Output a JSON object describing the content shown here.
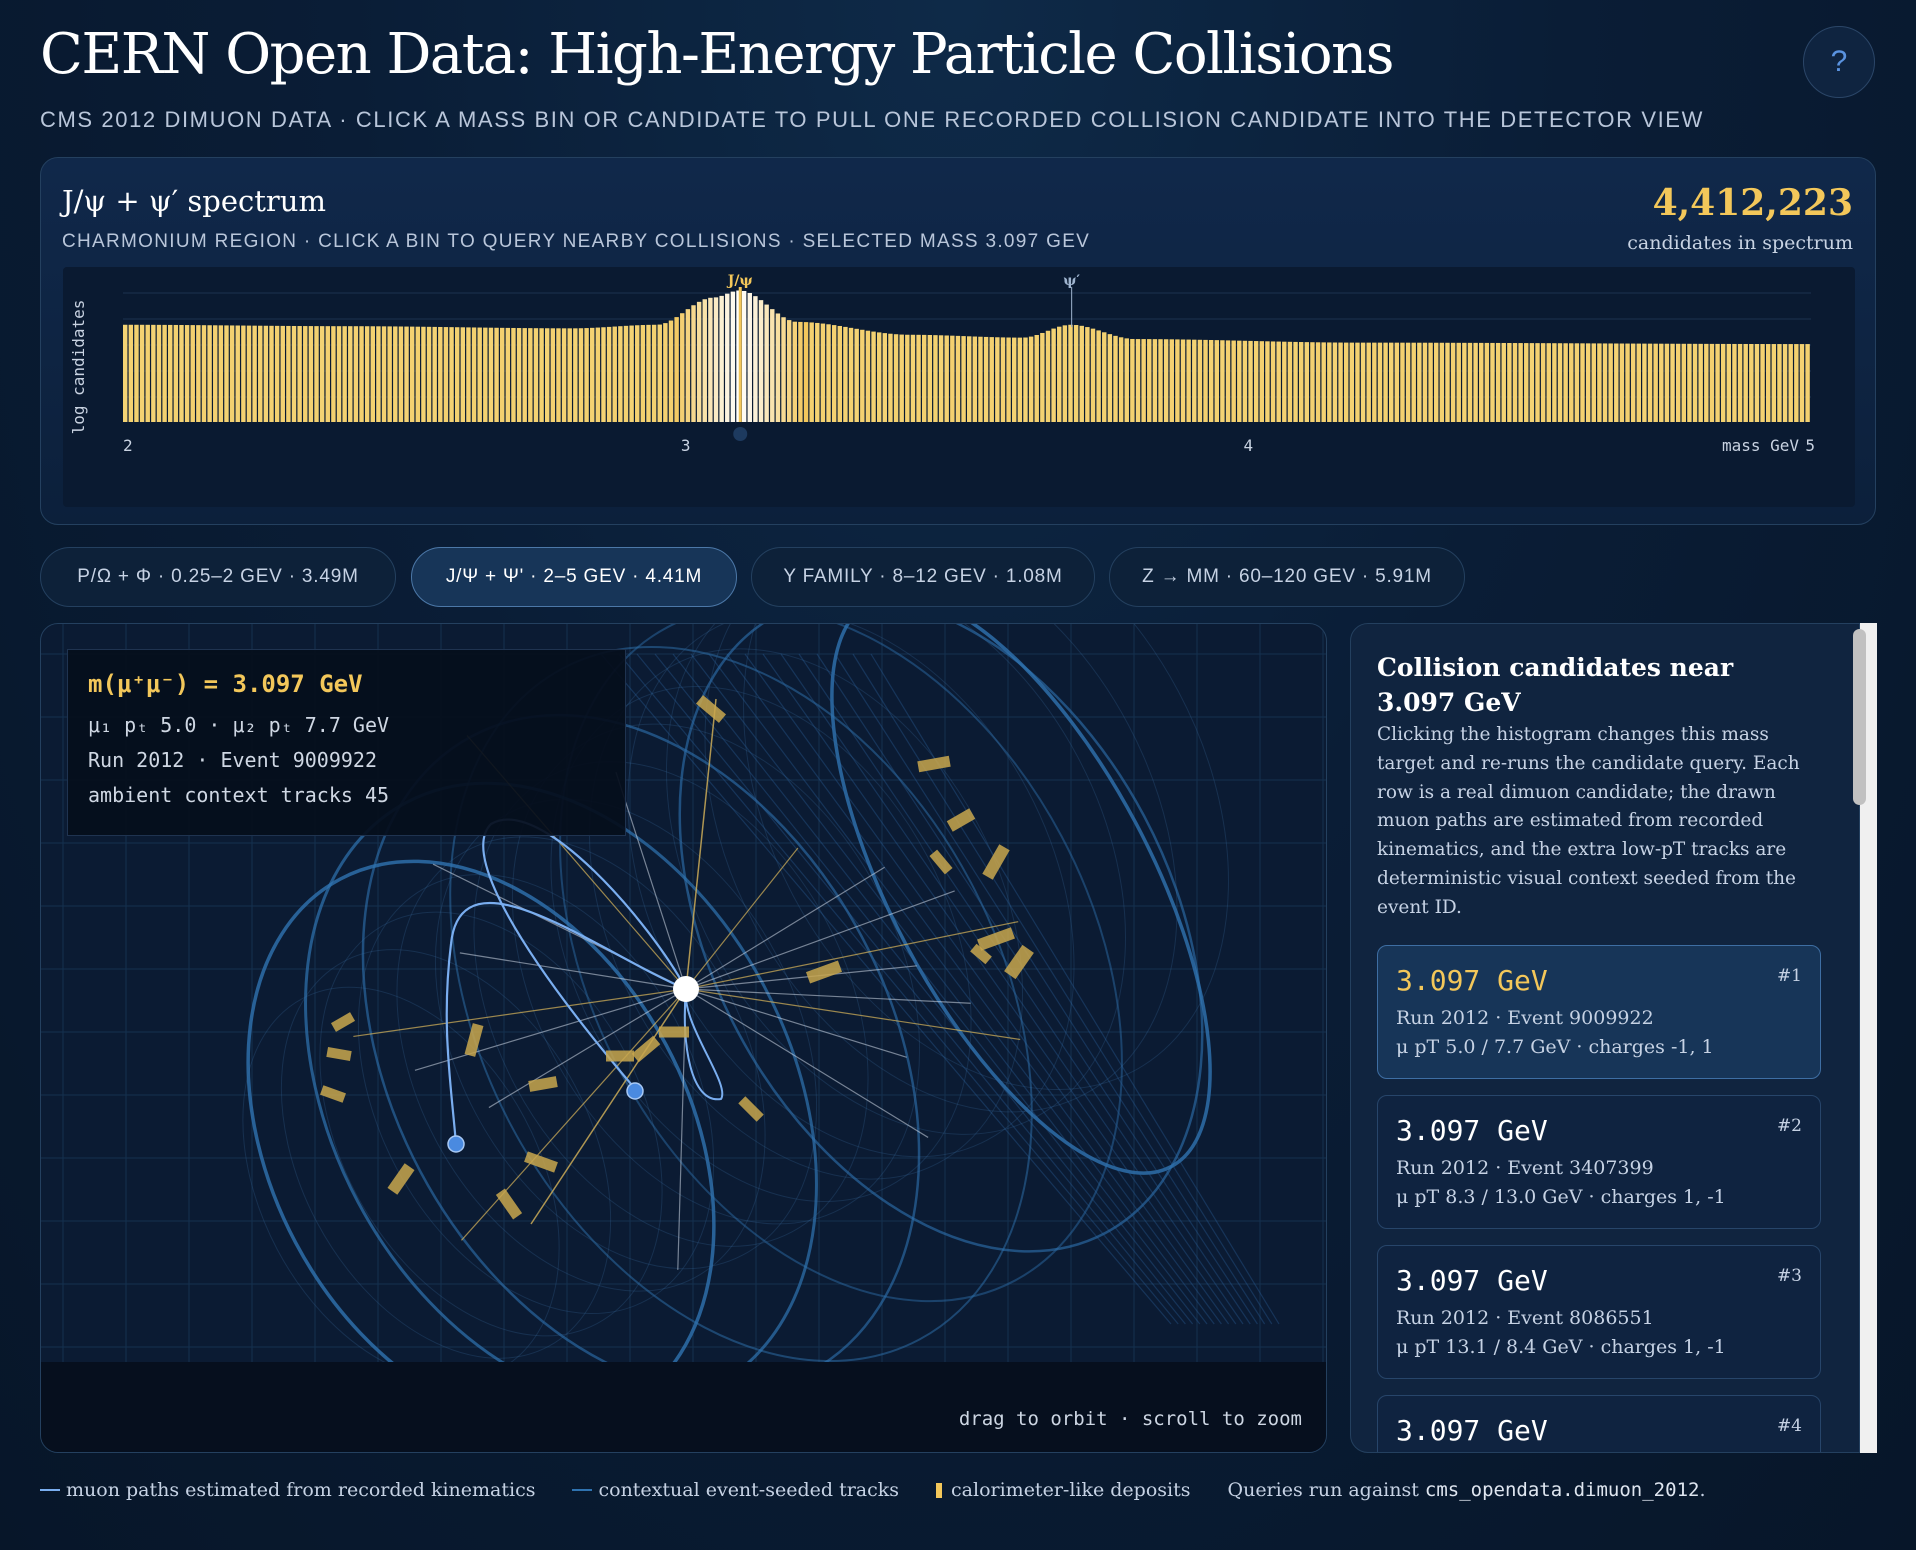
{
  "header": {
    "title": "CERN Open Data: High-Energy Particle Collisions",
    "subtitle": "CMS 2012 DIMUON DATA · CLICK A MASS BIN OR CANDIDATE TO PULL ONE RECORDED COLLISION CANDIDATE INTO THE DETECTOR VIEW",
    "help_label": "?"
  },
  "spectrum": {
    "title": "J/ψ + ψ′ spectrum",
    "caption": "CHARMONIUM REGION · CLICK A BIN TO QUERY NEARBY COLLISIONS · SELECTED MASS 3.097 GEV",
    "total": "4,412,223",
    "total_label": "candidates in spectrum"
  },
  "chart_data": {
    "type": "bar",
    "ylabel": "log candidates",
    "xlabel": "mass GeV",
    "xlim": [
      2,
      5
    ],
    "x_ticks": [
      "2",
      "3",
      "4",
      "5"
    ],
    "bin_count": 300,
    "peaks": [
      {
        "label": "J/ψ",
        "mass": 3.097,
        "selected": true
      },
      {
        "label": "ψ′",
        "mass": 3.686,
        "selected": false
      }
    ],
    "selected_mass": 3.097,
    "log_shape_anchors": [
      {
        "x": 2.0,
        "y": 0.68
      },
      {
        "x": 2.4,
        "y": 0.67
      },
      {
        "x": 2.8,
        "y": 0.655
      },
      {
        "x": 2.95,
        "y": 0.68
      },
      {
        "x": 3.05,
        "y": 0.87
      },
      {
        "x": 3.097,
        "y": 0.92
      },
      {
        "x": 3.2,
        "y": 0.7
      },
      {
        "x": 3.4,
        "y": 0.61
      },
      {
        "x": 3.6,
        "y": 0.59
      },
      {
        "x": 3.686,
        "y": 0.68
      },
      {
        "x": 3.8,
        "y": 0.58
      },
      {
        "x": 4.2,
        "y": 0.555
      },
      {
        "x": 5.0,
        "y": 0.545
      }
    ],
    "bar_color": "#f3c75a",
    "selected_color": "#ffffff"
  },
  "tabs": [
    {
      "label": "P/Ω + Φ · 0.25–2 GEV · 3.49M",
      "active": false
    },
    {
      "label": "J/Ψ + Ψ' · 2–5 GEV · 4.41M",
      "active": true
    },
    {
      "label": "Y FAMILY · 8–12 GEV · 1.08M",
      "active": false
    },
    {
      "label": "Z → MM · 60–120 GEV · 5.91M",
      "active": false
    }
  ],
  "detector": {
    "readout_mass": "m(μ⁺μ⁻) = 3.097 GeV",
    "readout_pt": "μ₁ pₜ 5.0 · μ₂ pₜ 7.7 GeV",
    "readout_event": "Run 2012 · Event 9009922",
    "readout_context": "ambient context tracks 45",
    "hint": "drag to orbit · scroll to zoom"
  },
  "panel": {
    "title": "Collision candidates near 3.097 GeV",
    "description": "Clicking the histogram changes this mass target and re-runs the candidate query. Each row is a real dimuon candidate; the drawn muon paths are estimated from recorded kinematics, and the extra low-pT tracks are deterministic visual context seeded from the event ID.",
    "candidates": [
      {
        "mass": "3.097 GeV",
        "rank": "#1",
        "run": "Run 2012 · Event 9009922",
        "kin": "μ pT 5.0 / 7.7 GeV · charges -1, 1",
        "active": true
      },
      {
        "mass": "3.097 GeV",
        "rank": "#2",
        "run": "Run 2012 · Event 3407399",
        "kin": "μ pT 8.3 / 13.0 GeV · charges 1, -1",
        "active": false
      },
      {
        "mass": "3.097 GeV",
        "rank": "#3",
        "run": "Run 2012 · Event 8086551",
        "kin": "μ pT 13.1 / 8.4 GeV · charges 1, -1",
        "active": false
      },
      {
        "mass": "3.097 GeV",
        "rank": "#4",
        "run": "",
        "kin": "",
        "active": false
      }
    ]
  },
  "legend": {
    "muon": "muon paths estimated from recorded kinematics",
    "context": "contextual event-seeded tracks",
    "deposit": "calorimeter-like deposits",
    "query_prefix": "Queries run against ",
    "query_table": "cms_opendata.dimuon_2012",
    "query_suffix": "."
  },
  "colors": {
    "accent_gold": "#f3c75a",
    "muon_blue": "#7aaef0",
    "context_blue": "#2f73b0",
    "background": "#0a1d36"
  }
}
